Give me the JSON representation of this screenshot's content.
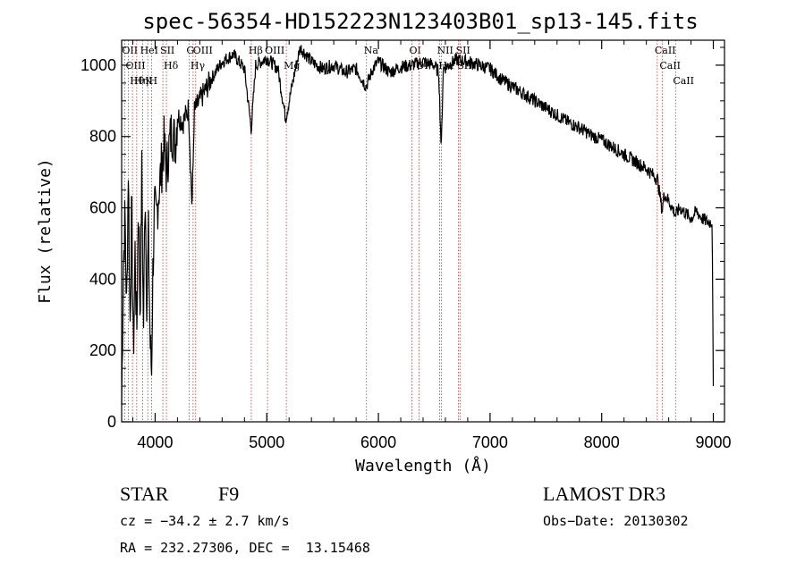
{
  "chart_data": {
    "type": "line",
    "title": "spec-56354-HD152223N123403B01_sp13-145.fits",
    "xlabel": "Wavelength (Å)",
    "ylabel": "Flux (relative)",
    "xlim": [
      3700,
      9100
    ],
    "ylim": [
      0,
      1070
    ],
    "x_ticks": [
      4000,
      5000,
      6000,
      7000,
      8000,
      9000
    ],
    "y_ticks": [
      0,
      200,
      400,
      600,
      800,
      1000
    ],
    "series": [
      {
        "name": "flux",
        "x": [
          3700,
          3715,
          3730,
          3745,
          3760,
          3775,
          3790,
          3805,
          3820,
          3835,
          3850,
          3865,
          3880,
          3895,
          3910,
          3925,
          3940,
          3955,
          3968,
          3980,
          3995,
          4010,
          4030,
          4060,
          4080,
          4101,
          4120,
          4150,
          4180,
          4200,
          4250,
          4300,
          4330,
          4340,
          4350,
          4400,
          4450,
          4500,
          4600,
          4700,
          4800,
          4861,
          4900,
          5000,
          5100,
          5170,
          5250,
          5300,
          5400,
          5500,
          5600,
          5700,
          5800,
          5890,
          5950,
          6000,
          6100,
          6200,
          6300,
          6400,
          6500,
          6540,
          6563,
          6580,
          6650,
          6700,
          6800,
          6900,
          7000,
          7100,
          7200,
          7300,
          7400,
          7500,
          7600,
          7700,
          7800,
          7900,
          8000,
          8100,
          8200,
          8300,
          8400,
          8500,
          8542,
          8560,
          8600,
          8662,
          8700,
          8800,
          8850,
          8900,
          8950,
          8990,
          9000
        ],
        "y": [
          50,
          430,
          580,
          300,
          720,
          260,
          610,
          180,
          480,
          240,
          640,
          300,
          700,
          250,
          680,
          330,
          520,
          220,
          140,
          420,
          600,
          560,
          640,
          720,
          780,
          700,
          760,
          820,
          780,
          860,
          840,
          880,
          600,
          720,
          870,
          900,
          930,
          960,
          1010,
          1030,
          990,
          820,
          1000,
          1020,
          990,
          850,
          980,
          1050,
          1010,
          990,
          1000,
          980,
          990,
          940,
          990,
          1010,
          980,
          995,
          1000,
          1010,
          1000,
          980,
          760,
          990,
          1005,
          1015,
          1010,
          1000,
          990,
          960,
          940,
          920,
          900,
          880,
          860,
          840,
          825,
          805,
          790,
          770,
          750,
          730,
          710,
          680,
          590,
          640,
          620,
          580,
          600,
          570,
          590,
          570,
          560,
          560,
          100
        ]
      }
    ],
    "spectral_lines": [
      {
        "label": "Hθ",
        "x": 3797
      },
      {
        "label": "OII",
        "x": 3727
      },
      {
        "label": "OIII",
        "x": 3760
      },
      {
        "label": "K",
        "x": 3934
      },
      {
        "label": "HeI",
        "x": 3889
      },
      {
        "label": "Hη",
        "x": 3835
      },
      {
        "label": "SII",
        "x": 4069
      },
      {
        "label": "H",
        "x": 3968
      },
      {
        "label": "Hδ",
        "x": 4101
      },
      {
        "label": "OIII",
        "x": 4363
      },
      {
        "label": "Hγ",
        "x": 4340
      },
      {
        "label": "G",
        "x": 4304
      },
      {
        "label": "OIII",
        "x": 5007
      },
      {
        "label": "Hβ",
        "x": 4861
      },
      {
        "label": "Mg",
        "x": 5175
      },
      {
        "label": "Na",
        "x": 5893
      },
      {
        "label": "OI",
        "x": 6300
      },
      {
        "label": "OI",
        "x": 6363
      },
      {
        "label": "Hα",
        "x": 6563
      },
      {
        "label": "NII",
        "x": 6548
      },
      {
        "label": "SII",
        "x": 6717
      },
      {
        "label": "SII",
        "x": 6731
      },
      {
        "label": "CaII",
        "x": 8498
      },
      {
        "label": "CaII",
        "x": 8542
      },
      {
        "label": "CaII",
        "x": 8662
      }
    ]
  },
  "info": {
    "object_type": "STAR",
    "subclass": "F9",
    "survey": "LAMOST DR3",
    "cz": "cz = −34.2 ± 2.7 km/s",
    "obs_date": "Obs−Date: 20130302",
    "coords": "RA = 232.27306, DEC =  13.15468"
  },
  "colors": {
    "line": "#000000",
    "marker": "#d03030",
    "background": "#ffffff"
  }
}
